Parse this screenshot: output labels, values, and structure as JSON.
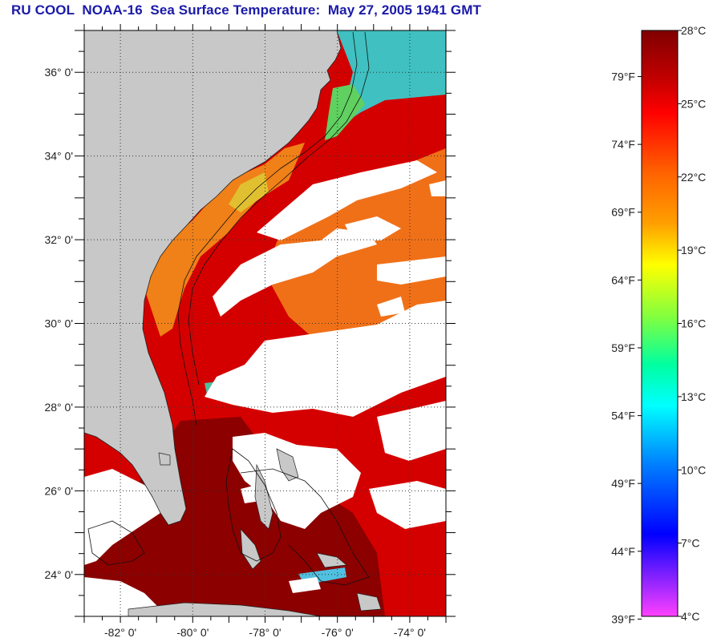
{
  "title": "RU COOL  NOAA-16  Sea Surface Temperature:  May 27, 2005 1941 GMT",
  "map": {
    "lon_range": [
      -83,
      -73
    ],
    "lat_range": [
      23,
      37
    ],
    "lat_labels": [
      {
        "value": 36,
        "label": "36° 0'"
      },
      {
        "value": 34,
        "label": "34° 0'"
      },
      {
        "value": 32,
        "label": "32° 0'"
      },
      {
        "value": 30,
        "label": "30° 0'"
      },
      {
        "value": 28,
        "label": "28° 0'"
      },
      {
        "value": 26,
        "label": "26° 0'"
      },
      {
        "value": 24,
        "label": "24° 0'"
      }
    ],
    "lon_labels": [
      {
        "value": -82,
        "label": "-82° 0'"
      },
      {
        "value": -80,
        "label": "-80° 0'"
      },
      {
        "value": -78,
        "label": "-78° 0'"
      },
      {
        "value": -76,
        "label": "-76° 0'"
      },
      {
        "value": -74,
        "label": "-74° 0'"
      }
    ],
    "colors": {
      "land": "#c8c8c8",
      "cloud": "#ffffff",
      "gulf_stream": "#d40000",
      "shelf_warm": "#f08018",
      "tropical": "#8c0000",
      "cold_shelf": "#40d0c8",
      "nearshore_cold": "#40c080"
    }
  },
  "colorbar": {
    "range_c": [
      4,
      28
    ],
    "celsius_labels": [
      "28°C",
      "25°C",
      "22°C",
      "19°C",
      "16°C",
      "13°C",
      "10°C",
      "7°C",
      "4°C"
    ],
    "fahrenheit_labels": [
      "79°F",
      "74°F",
      "69°F",
      "64°F",
      "59°F",
      "54°F",
      "49°F",
      "44°F",
      "39°F"
    ],
    "colors_top_to_bottom": [
      "#800000",
      "#c00000",
      "#ff0000",
      "#ff6000",
      "#ffa000",
      "#ffff00",
      "#80ff40",
      "#00ffa0",
      "#00ffff",
      "#0080ff",
      "#0000ff",
      "#8020ff",
      "#ff40ff"
    ]
  }
}
